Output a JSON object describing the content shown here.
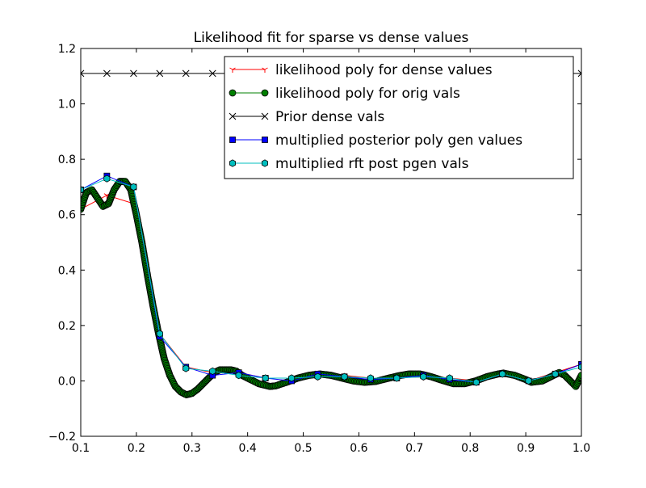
{
  "chart_data": {
    "type": "line",
    "title": "Likelihood fit for sparse vs dense values",
    "xlabel": "",
    "ylabel": "",
    "xlim": [
      0.1,
      1.0
    ],
    "ylim": [
      -0.2,
      1.2
    ],
    "x_ticks": [
      0.1,
      0.2,
      0.3,
      0.4,
      0.5,
      0.6,
      0.7,
      0.8,
      0.9,
      1.0
    ],
    "x_tick_labels": [
      "0.1",
      "0.2",
      "0.3",
      "0.4",
      "0.5",
      "0.6",
      "0.7",
      "0.8",
      "0.9",
      "1.0"
    ],
    "y_ticks": [
      -0.2,
      0.0,
      0.2,
      0.4,
      0.6,
      0.8,
      1.0,
      1.2
    ],
    "y_tick_labels": [
      "−0.2",
      "0.0",
      "0.2",
      "0.4",
      "0.6",
      "0.8",
      "1.0",
      "1.2"
    ],
    "grid": false,
    "legend_position": "top-right",
    "series": [
      {
        "name": "likelihood poly for dense values",
        "color": "#ff0000",
        "marker": "tri_down",
        "x": [
          0.1,
          0.147,
          0.195,
          0.242,
          0.289,
          0.337,
          0.384,
          0.432,
          0.479,
          0.526,
          0.574,
          0.621,
          0.668,
          0.716,
          0.763,
          0.811,
          0.858,
          0.905,
          0.953,
          1.0
        ],
        "y": [
          0.62,
          0.67,
          0.64,
          0.17,
          0.05,
          0.03,
          0.03,
          0.01,
          0.01,
          0.03,
          0.02,
          0.01,
          0.01,
          0.02,
          0.01,
          0.0,
          0.03,
          0.0,
          0.03,
          0.06
        ]
      },
      {
        "name": "likelihood poly for orig vals",
        "color": "#008000",
        "marker": "circle",
        "dense": true,
        "x": [
          0.1,
          0.11,
          0.12,
          0.13,
          0.14,
          0.15,
          0.16,
          0.17,
          0.18,
          0.19,
          0.2,
          0.21,
          0.22,
          0.23,
          0.24,
          0.25,
          0.26,
          0.27,
          0.28,
          0.29,
          0.3,
          0.31,
          0.32,
          0.33,
          0.34,
          0.35,
          0.36,
          0.37,
          0.38,
          0.39,
          0.4,
          0.42,
          0.44,
          0.45,
          0.47,
          0.49,
          0.51,
          0.53,
          0.55,
          0.57,
          0.59,
          0.61,
          0.63,
          0.65,
          0.67,
          0.69,
          0.71,
          0.73,
          0.75,
          0.77,
          0.79,
          0.81,
          0.83,
          0.85,
          0.86,
          0.88,
          0.9,
          0.91,
          0.93,
          0.95,
          0.96,
          0.97,
          0.98,
          0.99,
          1.0
        ],
        "y": [
          0.62,
          0.68,
          0.69,
          0.66,
          0.63,
          0.64,
          0.69,
          0.72,
          0.72,
          0.69,
          0.6,
          0.5,
          0.38,
          0.27,
          0.17,
          0.08,
          0.02,
          -0.02,
          -0.04,
          -0.05,
          -0.045,
          -0.03,
          -0.01,
          0.01,
          0.03,
          0.04,
          0.04,
          0.04,
          0.035,
          0.02,
          0.01,
          -0.01,
          -0.02,
          -0.018,
          -0.005,
          0.01,
          0.02,
          0.025,
          0.02,
          0.01,
          0.0,
          -0.005,
          -0.002,
          0.008,
          0.018,
          0.025,
          0.025,
          0.015,
          0.002,
          -0.01,
          -0.01,
          0.0,
          0.015,
          0.025,
          0.028,
          0.02,
          0.005,
          -0.005,
          0.0,
          0.02,
          0.03,
          0.02,
          0.0,
          -0.02,
          0.02
        ]
      },
      {
        "name": "Prior dense vals",
        "color": "#000000",
        "marker": "x",
        "x": [
          0.1,
          0.147,
          0.195,
          0.242,
          0.289,
          0.337,
          0.384,
          0.432,
          0.479,
          0.526,
          0.574,
          0.621,
          0.668,
          0.716,
          0.763,
          0.811,
          0.858,
          0.905,
          0.953,
          1.0
        ],
        "y": [
          1.11,
          1.11,
          1.11,
          1.11,
          1.11,
          1.11,
          1.11,
          1.11,
          1.11,
          1.11,
          1.11,
          1.11,
          1.11,
          1.11,
          1.11,
          1.11,
          1.11,
          1.11,
          1.11,
          1.11
        ]
      },
      {
        "name": "multiplied posterior poly gen values",
        "color": "#0000ff",
        "marker": "square",
        "x": [
          0.1,
          0.147,
          0.195,
          0.242,
          0.289,
          0.337,
          0.384,
          0.432,
          0.479,
          0.526,
          0.574,
          0.621,
          0.668,
          0.716,
          0.763,
          0.811,
          0.858,
          0.905,
          0.953,
          1.0
        ],
        "y": [
          0.69,
          0.74,
          0.7,
          0.16,
          0.05,
          0.02,
          0.03,
          0.01,
          0.0,
          0.025,
          0.015,
          0.005,
          0.01,
          0.02,
          0.005,
          -0.005,
          0.025,
          0.0,
          0.025,
          0.06
        ]
      },
      {
        "name": "multiplied rft post pgen vals",
        "color": "#00bfbf",
        "marker": "hexagon",
        "x": [
          0.1,
          0.147,
          0.195,
          0.242,
          0.289,
          0.337,
          0.384,
          0.432,
          0.479,
          0.526,
          0.574,
          0.621,
          0.668,
          0.716,
          0.763,
          0.811,
          0.858,
          0.905,
          0.953,
          1.0
        ],
        "y": [
          0.69,
          0.73,
          0.7,
          0.17,
          0.045,
          0.035,
          0.02,
          0.01,
          0.01,
          0.015,
          0.015,
          0.01,
          0.01,
          0.015,
          0.01,
          -0.005,
          0.025,
          0.0,
          0.025,
          0.05
        ]
      }
    ]
  }
}
